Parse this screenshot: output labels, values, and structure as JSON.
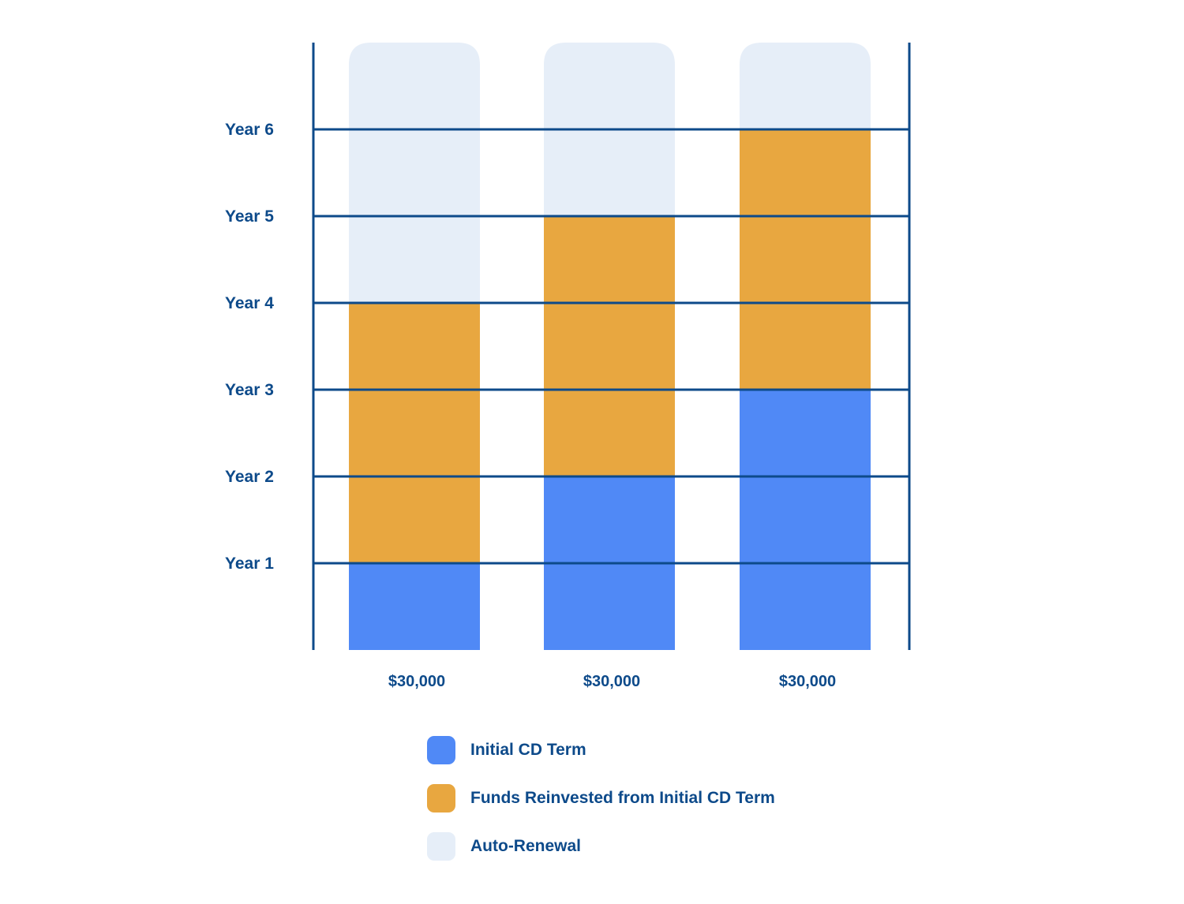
{
  "chart_data": {
    "type": "bar",
    "categories": [
      "$30,000",
      "$30,000",
      "$30,000"
    ],
    "y_ticks": [
      "Year 1",
      "Year 2",
      "Year 3",
      "Year 4",
      "Year 5",
      "Year 6"
    ],
    "ylim": [
      0,
      7
    ],
    "grid": true,
    "legend_position": "bottom",
    "series": [
      {
        "name": "Initial CD Term",
        "values": [
          1,
          2,
          3
        ]
      },
      {
        "name": "Funds Reinvested from Initial CD Term",
        "values": [
          3,
          3,
          3
        ]
      },
      {
        "name": "Auto-Renewal",
        "values": [
          3,
          2,
          1
        ]
      }
    ]
  },
  "colors": {
    "initial": "#5089F6",
    "reinvested": "#E8A740",
    "renewal": "#E6EEF8",
    "axis": "#0D4A8A",
    "text": "#0D4A8A"
  },
  "legend": [
    {
      "label": "Initial CD Term",
      "color": "#5089F6"
    },
    {
      "label": "Funds Reinvested from Initial CD Term",
      "color": "#E8A740"
    },
    {
      "label": "Auto-Renewal",
      "color": "#E6EEF8"
    }
  ]
}
